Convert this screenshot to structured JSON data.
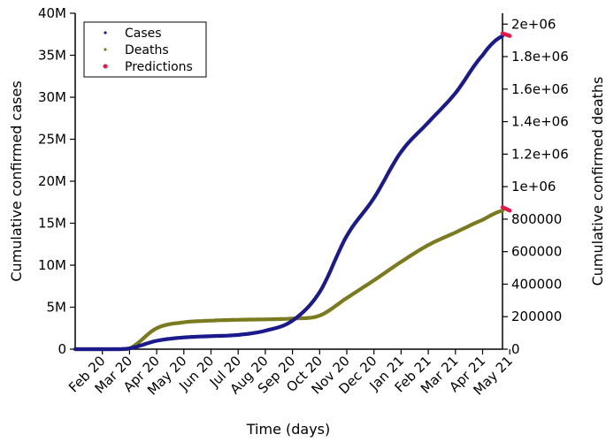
{
  "chart_data": {
    "type": "line",
    "xlabel": "Time (days)",
    "ylabel_left": "Cumulative confirmed cases",
    "ylabel_right": "Cumulative confirmed deaths",
    "x_ticks": [
      "Feb 20",
      "Mar 20",
      "Apr 20",
      "May 20",
      "Jun 20",
      "Jul 20",
      "Aug 20",
      "Sep 20",
      "Oct 20",
      "Nov 20",
      "Dec 20",
      "Jan 21",
      "Feb 21",
      "Mar 21",
      "Apr 21",
      "May 21"
    ],
    "y_left_ticks": [
      "0",
      "5M",
      "10M",
      "15M",
      "20M",
      "25M",
      "30M",
      "35M",
      "40M"
    ],
    "y_left_range": [
      0,
      40000000
    ],
    "y_right_ticks": [
      "0",
      "200000",
      "400000",
      "600000",
      "800000",
      "1e+06",
      "1.2e+06",
      "1.4e+06",
      "1.6e+06",
      "1.8e+06",
      "2e+06"
    ],
    "y_right_range": [
      0,
      2066667
    ],
    "legend": [
      {
        "label": "Cases",
        "color": "#1a1a8c"
      },
      {
        "label": "Deaths",
        "color": "#7a7a1f"
      },
      {
        "label": "Predictions",
        "color": "#e8174a"
      }
    ],
    "legend_position": "top-left",
    "x": [
      "Jan 20",
      "Feb 20",
      "Mar 20",
      "Apr 20",
      "May 20",
      "Jun 20",
      "Jul 20",
      "Aug 20",
      "Sep 20",
      "Oct 20",
      "Nov 20",
      "Dec 20",
      "Jan 21",
      "Feb 21",
      "Mar 21",
      "Apr 21",
      "May 21",
      "mid May 21"
    ],
    "series": [
      {
        "name": "Cases",
        "axis": "left",
        "color": "#1a1a8c",
        "values": [
          0,
          0,
          100000,
          1000000,
          1400000,
          1550000,
          1700000,
          2200000,
          3400000,
          6800000,
          13500000,
          18000000,
          23500000,
          27000000,
          30500000,
          35000000,
          37300000,
          37600000
        ]
      },
      {
        "name": "Deaths",
        "axis": "left",
        "color": "#7a7a1f",
        "values": [
          0,
          0,
          100000,
          2500000,
          3200000,
          3400000,
          3500000,
          3550000,
          3650000,
          4000000,
          6100000,
          8200000,
          10400000,
          12400000,
          13900000,
          15400000,
          16500000,
          16900000
        ]
      },
      {
        "name": "Predictions",
        "axis": "left",
        "color": "#e8174a",
        "x": [
          "May 21",
          "mid May 21"
        ],
        "values_cases": [
          37300000,
          37600000
        ],
        "values_deaths": [
          16500000,
          16900000
        ]
      }
    ]
  }
}
